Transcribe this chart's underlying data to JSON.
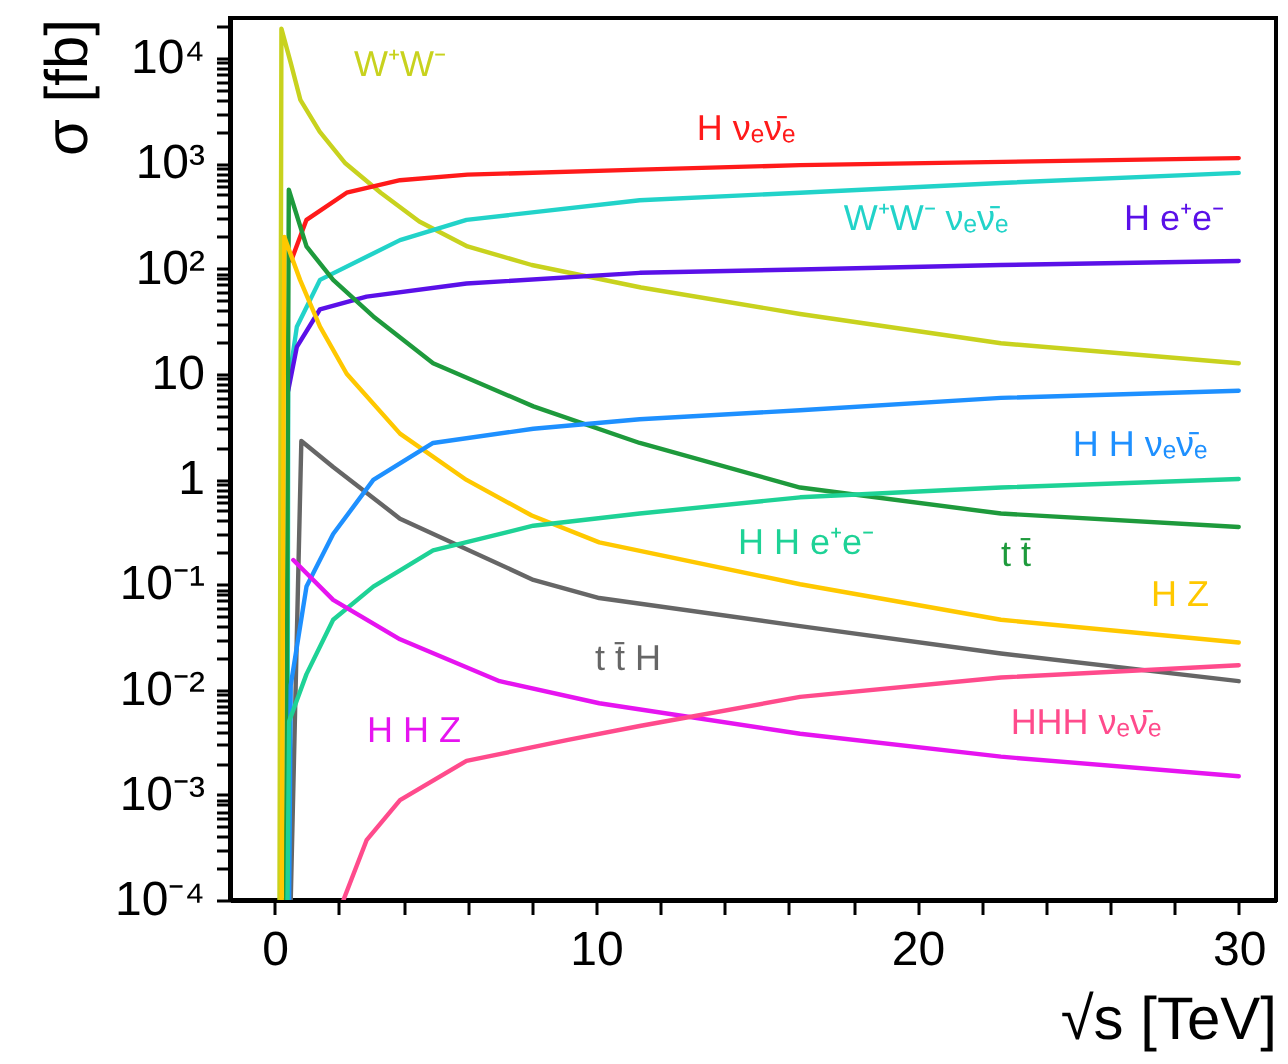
{
  "chart_data": {
    "type": "line",
    "xlabel": "√s [TeV]",
    "ylabel": "σ [fb]",
    "log": "y",
    "xlim": [
      -1.39,
      31.16
    ],
    "ylim": [
      0.0001,
      24000
    ],
    "xticks": [
      0,
      {
        "value": 2,
        "label": null
      },
      {
        "value": 4,
        "label": null
      },
      {
        "value": 6,
        "label": null
      },
      {
        "value": 8,
        "label": null
      },
      10,
      {
        "value": 12,
        "label": null
      },
      {
        "value": 14,
        "label": null
      },
      {
        "value": 16,
        "label": null
      },
      {
        "value": 18,
        "label": null
      },
      20,
      {
        "value": 22,
        "label": null
      },
      {
        "value": 24,
        "label": null
      },
      {
        "value": 26,
        "label": null
      },
      {
        "value": 28,
        "label": null
      },
      30
    ],
    "yticks": [
      {
        "value": 0.0001,
        "label": "10⁻⁴"
      },
      {
        "value": 0.0002,
        "label": null
      },
      {
        "value": 0.0003,
        "label": null
      },
      {
        "value": 0.0004,
        "label": null
      },
      {
        "value": 0.0005,
        "label": null
      },
      {
        "value": 0.0006,
        "label": null
      },
      {
        "value": 0.0007,
        "label": null
      },
      {
        "value": 0.0008,
        "label": null
      },
      {
        "value": 0.0009,
        "label": null
      },
      {
        "value": 0.001,
        "label": "10⁻³"
      },
      {
        "value": 0.002,
        "label": null
      },
      {
        "value": 0.003,
        "label": null
      },
      {
        "value": 0.004,
        "label": null
      },
      {
        "value": 0.005,
        "label": null
      },
      {
        "value": 0.006,
        "label": null
      },
      {
        "value": 0.007,
        "label": null
      },
      {
        "value": 0.008,
        "label": null
      },
      {
        "value": 0.009,
        "label": null
      },
      {
        "value": 0.01,
        "label": "10⁻²"
      },
      {
        "value": 0.02,
        "label": null
      },
      {
        "value": 0.03,
        "label": null
      },
      {
        "value": 0.04,
        "label": null
      },
      {
        "value": 0.05,
        "label": null
      },
      {
        "value": 0.06,
        "label": null
      },
      {
        "value": 0.07,
        "label": null
      },
      {
        "value": 0.08,
        "label": null
      },
      {
        "value": 0.09,
        "label": null
      },
      {
        "value": 0.1,
        "label": "10⁻¹"
      },
      {
        "value": 0.2,
        "label": null
      },
      {
        "value": 0.3,
        "label": null
      },
      {
        "value": 0.4,
        "label": null
      },
      {
        "value": 0.5,
        "label": null
      },
      {
        "value": 0.6,
        "label": null
      },
      {
        "value": 0.7,
        "label": null
      },
      {
        "value": 0.8,
        "label": null
      },
      {
        "value": 0.9,
        "label": null
      },
      1,
      {
        "value": 2,
        "label": null
      },
      {
        "value": 3,
        "label": null
      },
      {
        "value": 4,
        "label": null
      },
      {
        "value": 5,
        "label": null
      },
      {
        "value": 6,
        "label": null
      },
      {
        "value": 7,
        "label": null
      },
      {
        "value": 8,
        "label": null
      },
      {
        "value": 9,
        "label": null
      },
      10,
      {
        "value": 20,
        "label": null
      },
      {
        "value": 30,
        "label": null
      },
      {
        "value": 40,
        "label": null
      },
      {
        "value": 50,
        "label": null
      },
      {
        "value": 60,
        "label": null
      },
      {
        "value": 70,
        "label": null
      },
      {
        "value": 80,
        "label": null
      },
      {
        "value": 90,
        "label": null
      },
      {
        "value": 100,
        "label": "10²"
      },
      {
        "value": 200,
        "label": null
      },
      {
        "value": 300,
        "label": null
      },
      {
        "value": 400,
        "label": null
      },
      {
        "value": 500,
        "label": null
      },
      {
        "value": 600,
        "label": null
      },
      {
        "value": 700,
        "label": null
      },
      {
        "value": 800,
        "label": null
      },
      {
        "value": 900,
        "label": null
      },
      {
        "value": 1000,
        "label": "10³"
      },
      {
        "value": 2000,
        "label": null
      },
      {
        "value": 3000,
        "label": null
      },
      {
        "value": 4000,
        "label": null
      },
      {
        "value": 5000,
        "label": null
      },
      {
        "value": 6000,
        "label": null
      },
      {
        "value": 7000,
        "label": null
      },
      {
        "value": 8000,
        "label": null
      },
      {
        "value": 9000,
        "label": null
      },
      {
        "value": 10000,
        "label": "10⁴"
      },
      {
        "value": 20000,
        "label": null
      }
    ],
    "series": [
      {
        "name": "W⁺W⁻",
        "color": "#c8d21e",
        "x": [
          0.15,
          0.21,
          0.5,
          0.8,
          1.4,
          2.2,
          3.3,
          4.5,
          6,
          8,
          11.4,
          16.35,
          22.6,
          30
        ],
        "values": [
          0.0001,
          19000,
          9000,
          4000,
          2000,
          1000,
          525,
          280,
          162,
          108,
          66,
          37,
          19.5,
          12.6
        ]
      },
      {
        "name": "H νₑν̄ₑ",
        "color": "#ff1a1a",
        "x": [
          0.52,
          0.99,
          2.24,
          3.9,
          6,
          11.36,
          16.35,
          30
        ],
        "values": [
          120,
          290,
          525,
          690,
          780,
          870,
          960,
          1120
        ]
      },
      {
        "name": "W⁺W⁻ νₑν̄ₑ",
        "color": "#22d3c9",
        "x": [
          0.4,
          0.42,
          0.69,
          1.41,
          3.9,
          5.97,
          11.36,
          16.35,
          22.6,
          30
        ],
        "values": [
          0.0001,
          7.6,
          28,
          78,
          186,
          290,
          445,
          525,
          650,
          810
        ]
      },
      {
        "name": "H e⁺e⁻",
        "color": "#5a10e8",
        "x": [
          0.42,
          0.69,
          1.41,
          2.86,
          5.97,
          11.36,
          16.35,
          22.6,
          30
        ],
        "values": [
          6.9,
          18,
          41,
          54,
          72,
          91,
          98,
          108,
          118
        ]
      },
      {
        "name": "t t̄",
        "color": "#1e9a3c",
        "x": [
          0.35,
          0.44,
          0.99,
          1.82,
          3.07,
          4.93,
          8.05,
          11.36,
          16.35,
          22.6,
          30
        ],
        "values": [
          0.0001,
          560,
          162,
          78,
          35,
          12.6,
          4.9,
          2.2,
          0.83,
          0.47,
          0.35
        ]
      },
      {
        "name": "H Z",
        "color": "#ffc800",
        "x": [
          0.22,
          0.3,
          0.79,
          1.41,
          2.24,
          3.9,
          5.97,
          8,
          10.1,
          16.35,
          22.6,
          30
        ],
        "values": [
          0.0001,
          200,
          78,
          28,
          10,
          2.7,
          0.98,
          0.45,
          0.25,
          0.1,
          0.046,
          0.028
        ]
      },
      {
        "name": "t t̄ H",
        "color": "#666666",
        "x": [
          0.5,
          0.83,
          1.82,
          3.9,
          8.05,
          10.1,
          16.35,
          22.6,
          30
        ],
        "values": [
          0.0001,
          2.3,
          1.3,
          0.42,
          0.11,
          0.074,
          0.04,
          0.022,
          0.012
        ]
      },
      {
        "name": "H H νₑν̄ₑ",
        "color": "#1e90ff",
        "x": [
          0.45,
          0.5,
          0.99,
          1.82,
          3.07,
          4.93,
          8.05,
          11.36,
          16.35,
          22.6,
          30
        ],
        "values": [
          0.0001,
          0.011,
          0.095,
          0.3,
          0.98,
          2.2,
          3,
          3.7,
          4.5,
          5.9,
          6.9
        ]
      },
      {
        "name": "H H e⁺e⁻",
        "color": "#1ed296",
        "x": [
          0.4,
          0.45,
          0.99,
          1.82,
          3.07,
          4.93,
          8.05,
          11.36,
          16.35,
          22.6,
          30
        ],
        "values": [
          0.0001,
          0.005,
          0.014,
          0.046,
          0.095,
          0.21,
          0.36,
          0.47,
          0.67,
          0.83,
          1
        ]
      },
      {
        "name": "H H Z",
        "color": "#e614f0",
        "x": [
          0.58,
          1.82,
          3.9,
          7,
          10.1,
          16.35,
          22.6,
          30
        ],
        "values": [
          0.17,
          0.071,
          0.03,
          0.012,
          0.0074,
          0.0038,
          0.0023,
          0.0015
        ]
      },
      {
        "name": "HHH νₑν̄ₑ",
        "color": "#ff4b8c",
        "x": [
          2.14,
          2.86,
          3.9,
          5.97,
          9.09,
          11.36,
          16.35,
          22.6,
          30
        ],
        "values": [
          0.0001,
          0.00037,
          0.00089,
          0.0021,
          0.0033,
          0.0045,
          0.0085,
          0.013,
          0.017
        ]
      }
    ]
  }
}
